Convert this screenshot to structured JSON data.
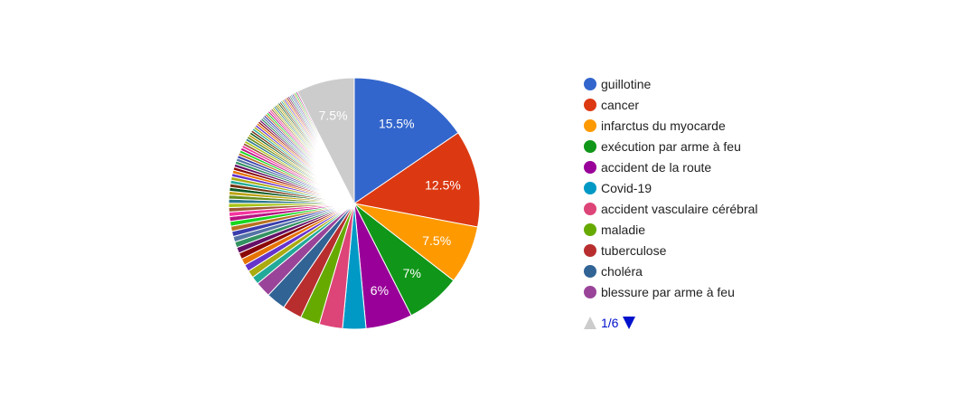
{
  "chart_data": {
    "type": "pie",
    "slices": [
      {
        "label": "guillotine",
        "value": 15.5,
        "color": "#3366cc",
        "data_label": "15.5%"
      },
      {
        "label": "cancer",
        "value": 12.5,
        "color": "#dc3912",
        "data_label": "12.5%"
      },
      {
        "label": "infarctus du myocarde",
        "value": 7.5,
        "color": "#ff9900",
        "data_label": "7.5%"
      },
      {
        "label": "exécution par arme à feu",
        "value": 7.0,
        "color": "#109618",
        "data_label": "7%"
      },
      {
        "label": "accident de la route",
        "value": 6.0,
        "color": "#990099",
        "data_label": "6%"
      },
      {
        "label": "Covid-19",
        "value": 3.0,
        "color": "#0099c6",
        "data_label": ""
      },
      {
        "label": "accident vasculaire cérébral",
        "value": 3.0,
        "color": "#dd4477",
        "data_label": ""
      },
      {
        "label": "maladie",
        "value": 2.5,
        "color": "#66aa00",
        "data_label": ""
      },
      {
        "label": "tuberculose",
        "value": 2.5,
        "color": "#b82e2e",
        "data_label": ""
      },
      {
        "label": "choléra",
        "value": 2.5,
        "color": "#316395",
        "data_label": ""
      },
      {
        "label": "blessure par arme à feu",
        "value": 2.0,
        "color": "#994499",
        "data_label": ""
      }
    ],
    "unlisted_slices": {
      "count": 72,
      "total_value": 28.5,
      "colors": [
        "#22aa99",
        "#aaaa11",
        "#6633cc",
        "#e67300",
        "#8b0707",
        "#651067",
        "#329262",
        "#5574a6",
        "#3b3eac",
        "#b77322",
        "#16d620",
        "#b91383",
        "#f4359e",
        "#9c5935",
        "#a9c413",
        "#2a778d",
        "#668d1c",
        "#bea413",
        "#0c5922",
        "#743411"
      ]
    },
    "other_slice": {
      "label": "Other",
      "value": 7.5,
      "color": "#cccccc",
      "data_label": "7.5%"
    },
    "legend": {
      "position": "right",
      "entries": [
        "guillotine",
        "cancer",
        "infarctus du myocarde",
        "exécution par arme à feu",
        "accident de la route",
        "Covid-19",
        "accident vasculaire cérébral",
        "maladie",
        "tuberculose",
        "choléra",
        "blessure par arme à feu"
      ],
      "pager": {
        "page_text": "1/6",
        "up_color": "#cccccc",
        "down_color": "#0011cc"
      }
    }
  }
}
